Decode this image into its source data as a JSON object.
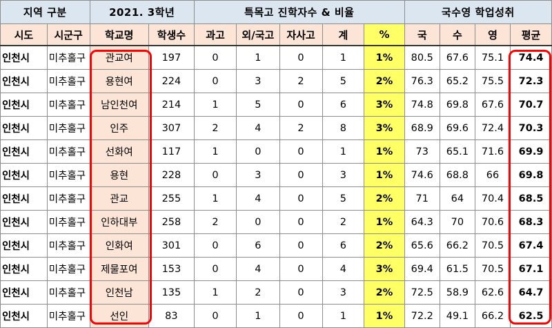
{
  "header_groups": [
    {
      "label": "지역 구분"
    },
    {
      "label": "2021. 3학년"
    },
    {
      "label": "특목고 진학자수 & 비율"
    },
    {
      "label": "국수영 학업성취"
    }
  ],
  "columns": [
    "시도",
    "시군구",
    "학교명",
    "학생수",
    "과고",
    "외/국고",
    "자사고",
    "계",
    "%",
    "국",
    "수",
    "영",
    "평균"
  ],
  "rows": [
    {
      "sido": "인천시",
      "sigungu": "미추홀구",
      "school": "관교여",
      "students": "197",
      "sci": "0",
      "foreign": "1",
      "private": "0",
      "total": "1",
      "pct": "1%",
      "kor": "80.5",
      "math": "67.6",
      "eng": "75.1",
      "avg": "74.4"
    },
    {
      "sido": "인천시",
      "sigungu": "미추홀구",
      "school": "용현여",
      "students": "224",
      "sci": "0",
      "foreign": "3",
      "private": "2",
      "total": "5",
      "pct": "2%",
      "kor": "76.3",
      "math": "65.2",
      "eng": "75.5",
      "avg": "72.3"
    },
    {
      "sido": "인천시",
      "sigungu": "미추홀구",
      "school": "남인천여",
      "students": "214",
      "sci": "1",
      "foreign": "5",
      "private": "0",
      "total": "6",
      "pct": "3%",
      "kor": "74.8",
      "math": "69.8",
      "eng": "67.6",
      "avg": "70.7"
    },
    {
      "sido": "인천시",
      "sigungu": "미추홀구",
      "school": "인주",
      "students": "307",
      "sci": "2",
      "foreign": "4",
      "private": "2",
      "total": "8",
      "pct": "3%",
      "kor": "68.9",
      "math": "69.6",
      "eng": "72.4",
      "avg": "70.3"
    },
    {
      "sido": "인천시",
      "sigungu": "미추홀구",
      "school": "선화여",
      "students": "117",
      "sci": "1",
      "foreign": "0",
      "private": "0",
      "total": "1",
      "pct": "1%",
      "kor": "73",
      "math": "65.1",
      "eng": "71.6",
      "avg": "69.9"
    },
    {
      "sido": "인천시",
      "sigungu": "미추홀구",
      "school": "용현",
      "students": "228",
      "sci": "0",
      "foreign": "3",
      "private": "0",
      "total": "3",
      "pct": "1%",
      "kor": "74.6",
      "math": "68.8",
      "eng": "66",
      "avg": "69.8"
    },
    {
      "sido": "인천시",
      "sigungu": "미추홀구",
      "school": "관교",
      "students": "255",
      "sci": "1",
      "foreign": "4",
      "private": "0",
      "total": "5",
      "pct": "2%",
      "kor": "71",
      "math": "64",
      "eng": "70.4",
      "avg": "68.5"
    },
    {
      "sido": "인천시",
      "sigungu": "미추홀구",
      "school": "인하대부",
      "students": "258",
      "sci": "2",
      "foreign": "0",
      "private": "0",
      "total": "2",
      "pct": "1%",
      "kor": "64.3",
      "math": "70",
      "eng": "70.6",
      "avg": "68.3"
    },
    {
      "sido": "인천시",
      "sigungu": "미추홀구",
      "school": "인화여",
      "students": "301",
      "sci": "0",
      "foreign": "6",
      "private": "0",
      "total": "6",
      "pct": "2%",
      "kor": "65.6",
      "math": "66.2",
      "eng": "70.5",
      "avg": "67.4"
    },
    {
      "sido": "인천시",
      "sigungu": "미추홀구",
      "school": "제물포여",
      "students": "153",
      "sci": "0",
      "foreign": "4",
      "private": "0",
      "total": "4",
      "pct": "3%",
      "kor": "69.4",
      "math": "61.5",
      "eng": "70.5",
      "avg": "67.1"
    },
    {
      "sido": "인천시",
      "sigungu": "미추홀구",
      "school": "인천남",
      "students": "135",
      "sci": "1",
      "foreign": "2",
      "private": "0",
      "total": "3",
      "pct": "2%",
      "kor": "72.5",
      "math": "58.9",
      "eng": "62.6",
      "avg": "64.7"
    },
    {
      "sido": "인천시",
      "sigungu": "미추홀구",
      "school": "선인",
      "students": "83",
      "sci": "0",
      "foreign": "1",
      "private": "0",
      "total": "1",
      "pct": "1%",
      "kor": "72.2",
      "math": "49.1",
      "eng": "66.2",
      "avg": "62.5"
    }
  ],
  "colors": {
    "header_blue": "#dce6f1",
    "header_peach": "#fce4d6",
    "highlight_yellow": "#ffff66",
    "highlight_box": "#ff0000"
  }
}
